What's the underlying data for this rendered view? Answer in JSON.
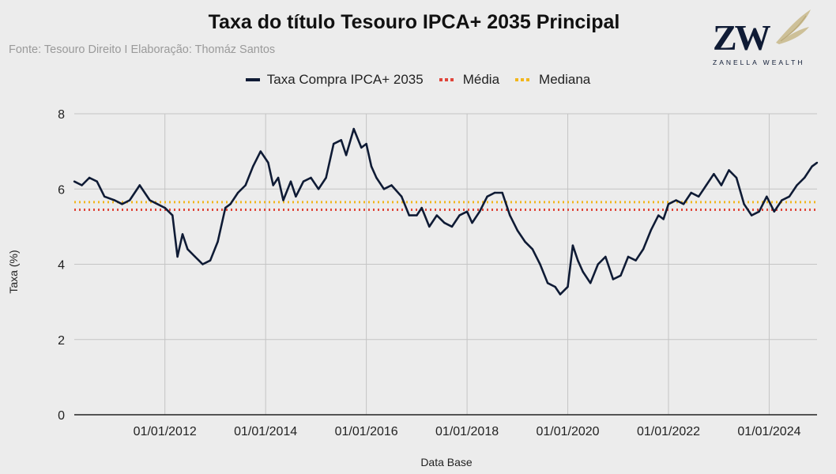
{
  "header": {
    "title": "Taxa do título Tesouro IPCA+ 2035 Principal",
    "subtitle": "Fonte: Tesouro Direito I Elaboração: Thomáz Santos"
  },
  "brand": {
    "monogram": "ZW",
    "name": "ZANELLA WEALTH",
    "navy": "#0f1b35",
    "gold": "#c8b88a"
  },
  "legend": [
    {
      "label": "Taxa Compra IPCA+ 2035",
      "color": "#0f1b35",
      "style": "line"
    },
    {
      "label": "Média",
      "color": "#e0453a",
      "style": "dotted"
    },
    {
      "label": "Mediana",
      "color": "#f2b61c",
      "style": "dotted"
    }
  ],
  "chart_data": {
    "type": "line",
    "title": "Taxa do título Tesouro IPCA+ 2035 Principal",
    "xlabel": "Data Base",
    "ylabel": "Taxa (%)",
    "ylim": [
      0,
      8
    ],
    "xlim": [
      2010.2,
      2024.95
    ],
    "grid": true,
    "legend_position": "top-center",
    "y_ticks": [
      "0",
      "2",
      "4",
      "6",
      "8"
    ],
    "x_ticks": [
      {
        "label": "01/01/2012",
        "x": 2012.0
      },
      {
        "label": "01/01/2014",
        "x": 2014.0
      },
      {
        "label": "01/01/2016",
        "x": 2016.0
      },
      {
        "label": "01/01/2018",
        "x": 2018.0
      },
      {
        "label": "01/01/2020",
        "x": 2020.0
      },
      {
        "label": "01/01/2022",
        "x": 2022.0
      },
      {
        "label": "01/01/2024",
        "x": 2024.0
      }
    ],
    "series": [
      {
        "name": "Taxa Compra IPCA+ 2035",
        "color": "#0f1b35",
        "x": [
          2010.2,
          2010.35,
          2010.5,
          2010.65,
          2010.8,
          2011.0,
          2011.15,
          2011.3,
          2011.5,
          2011.7,
          2011.85,
          2012.0,
          2012.15,
          2012.25,
          2012.35,
          2012.45,
          2012.6,
          2012.75,
          2012.9,
          2013.05,
          2013.2,
          2013.3,
          2013.45,
          2013.6,
          2013.75,
          2013.9,
          2014.05,
          2014.15,
          2014.25,
          2014.35,
          2014.5,
          2014.6,
          2014.75,
          2014.9,
          2015.05,
          2015.2,
          2015.35,
          2015.5,
          2015.6,
          2015.75,
          2015.9,
          2016.0,
          2016.1,
          2016.2,
          2016.35,
          2016.5,
          2016.7,
          2016.85,
          2017.0,
          2017.1,
          2017.25,
          2017.4,
          2017.55,
          2017.7,
          2017.85,
          2018.0,
          2018.1,
          2018.25,
          2018.4,
          2018.55,
          2018.7,
          2018.85,
          2019.0,
          2019.15,
          2019.3,
          2019.45,
          2019.6,
          2019.75,
          2019.85,
          2020.0,
          2020.1,
          2020.2,
          2020.3,
          2020.45,
          2020.6,
          2020.75,
          2020.9,
          2021.05,
          2021.2,
          2021.35,
          2021.5,
          2021.65,
          2021.8,
          2021.9,
          2022.0,
          2022.15,
          2022.3,
          2022.45,
          2022.6,
          2022.75,
          2022.9,
          2023.05,
          2023.2,
          2023.35,
          2023.5,
          2023.65,
          2023.8,
          2023.95,
          2024.1,
          2024.25,
          2024.4,
          2024.55,
          2024.7,
          2024.85,
          2024.95
        ],
        "values": [
          6.2,
          6.1,
          6.3,
          6.2,
          5.8,
          5.7,
          5.6,
          5.7,
          6.1,
          5.7,
          5.6,
          5.5,
          5.3,
          4.2,
          4.8,
          4.4,
          4.2,
          4.0,
          4.1,
          4.6,
          5.5,
          5.6,
          5.9,
          6.1,
          6.6,
          7.0,
          6.7,
          6.1,
          6.3,
          5.7,
          6.2,
          5.8,
          6.2,
          6.3,
          6.0,
          6.3,
          7.2,
          7.3,
          6.9,
          7.6,
          7.1,
          7.2,
          6.6,
          6.3,
          6.0,
          6.1,
          5.8,
          5.3,
          5.3,
          5.5,
          5.0,
          5.3,
          5.1,
          5.0,
          5.3,
          5.4,
          5.1,
          5.4,
          5.8,
          5.9,
          5.9,
          5.3,
          4.9,
          4.6,
          4.4,
          4.0,
          3.5,
          3.4,
          3.2,
          3.4,
          4.5,
          4.1,
          3.8,
          3.5,
          4.0,
          4.2,
          3.6,
          3.7,
          4.2,
          4.1,
          4.4,
          4.9,
          5.3,
          5.2,
          5.6,
          5.7,
          5.6,
          5.9,
          5.8,
          6.1,
          6.4,
          6.1,
          6.5,
          6.3,
          5.6,
          5.3,
          5.4,
          5.8,
          5.4,
          5.7,
          5.8,
          6.1,
          6.3,
          6.6,
          6.7
        ]
      },
      {
        "name": "Média",
        "color": "#e0453a",
        "constant": 5.45,
        "style": "dotted"
      },
      {
        "name": "Mediana",
        "color": "#f2b61c",
        "constant": 5.65,
        "style": "dotted"
      }
    ]
  }
}
